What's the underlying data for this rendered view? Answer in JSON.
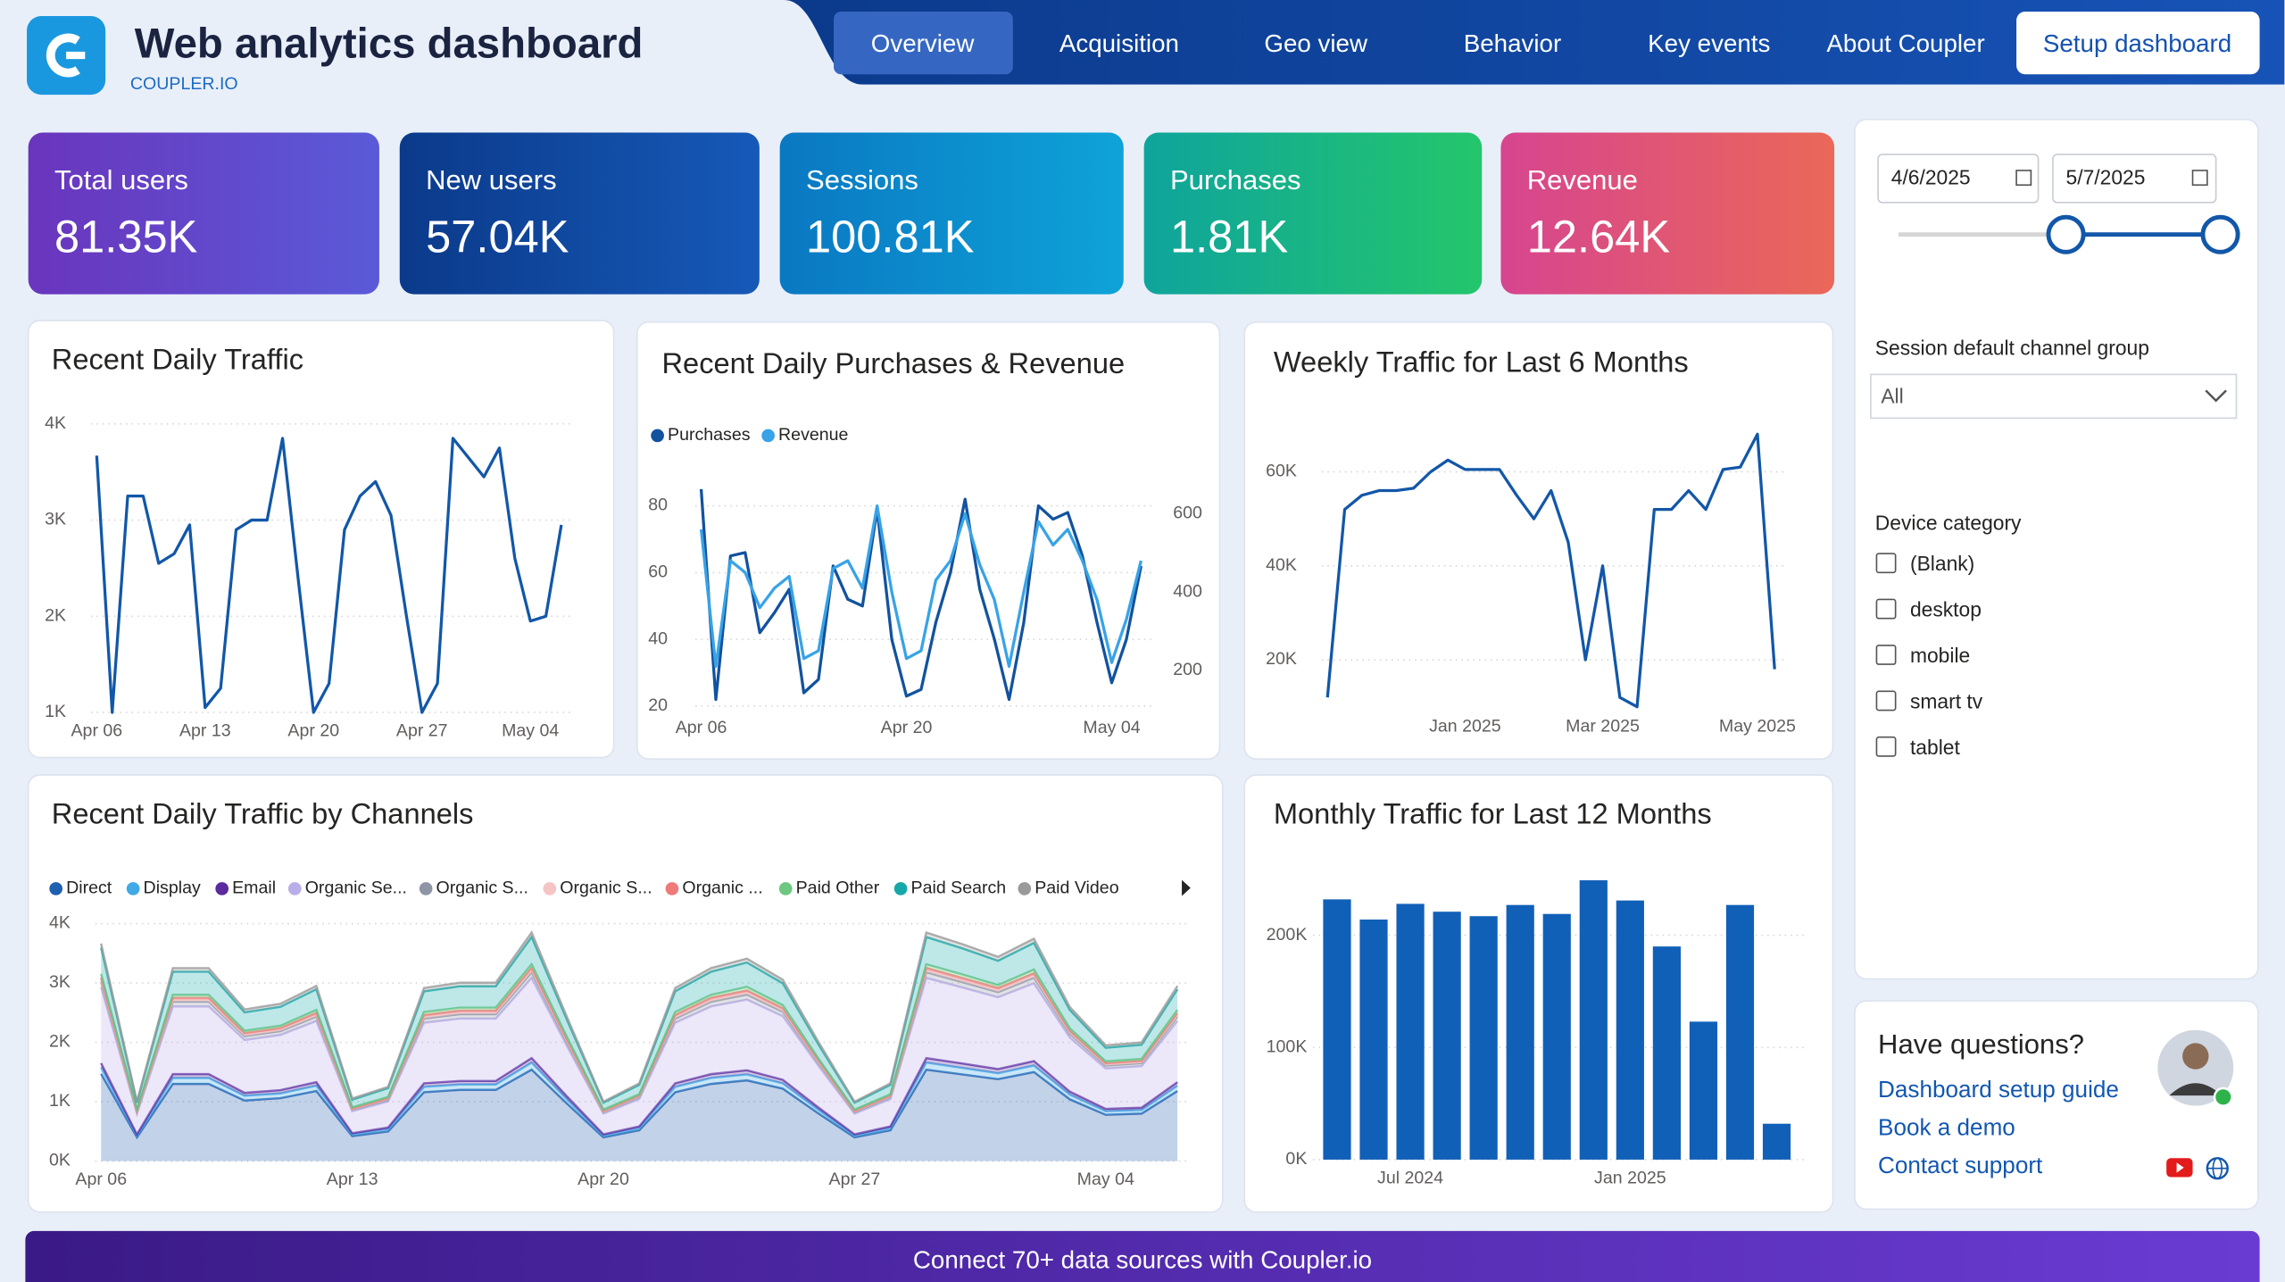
{
  "header": {
    "title": "Web analytics dashboard",
    "brand": "COUPLER.IO"
  },
  "nav": {
    "items": [
      "Overview",
      "Acquisition",
      "Geo view",
      "Behavior",
      "Key events",
      "About Coupler"
    ],
    "button": "Setup dashboard"
  },
  "kpis": [
    {
      "label": "Total users",
      "value": "81.35K"
    },
    {
      "label": "New users",
      "value": "57.04K"
    },
    {
      "label": "Sessions",
      "value": "100.81K"
    },
    {
      "label": "Purchases",
      "value": "1.81K"
    },
    {
      "label": "Revenue",
      "value": "12.64K"
    }
  ],
  "chart_data": [
    {
      "type": "line",
      "title": "Recent Daily Traffic",
      "color": "#1257a8",
      "grid": true,
      "categories": [
        "Apr 06",
        null,
        null,
        null,
        null,
        null,
        null,
        "Apr 13",
        null,
        null,
        null,
        null,
        null,
        null,
        "Apr 20",
        null,
        null,
        null,
        null,
        null,
        null,
        "Apr 27",
        null,
        null,
        null,
        null,
        null,
        null,
        "May 04",
        null,
        null
      ],
      "values": [
        3670,
        1000,
        3250,
        3250,
        2550,
        2650,
        2950,
        1050,
        1250,
        2900,
        3000,
        3000,
        3850,
        2400,
        1000,
        1300,
        2900,
        3250,
        3400,
        3050,
        2000,
        1000,
        1300,
        3850,
        3650,
        3450,
        3750,
        2600,
        1950,
        2000,
        2950
      ],
      "ylim": [
        1000,
        4000
      ],
      "yticks": [
        {
          "value": 1000,
          "label": "1K"
        },
        {
          "value": 2000,
          "label": "2K"
        },
        {
          "value": 3000,
          "label": "3K"
        },
        {
          "value": 4000,
          "label": "4K"
        }
      ]
    },
    {
      "type": "line",
      "title": "Recent Daily Purchases & Revenue",
      "grid": true,
      "categories": [
        "Apr 06",
        null,
        null,
        null,
        null,
        null,
        null,
        null,
        null,
        null,
        null,
        null,
        null,
        null,
        "Apr 20",
        null,
        null,
        null,
        null,
        null,
        null,
        null,
        null,
        null,
        null,
        null,
        null,
        null,
        "May 04",
        null,
        null
      ],
      "series": [
        {
          "name": "Purchases",
          "color": "#12529e",
          "values": [
            85,
            22,
            65,
            66,
            42,
            48,
            55,
            24,
            28,
            62,
            52,
            50,
            79,
            40,
            23,
            25,
            45,
            60,
            82,
            55,
            40,
            22,
            45,
            80,
            76,
            78,
            65,
            45,
            27,
            40,
            62
          ]
        },
        {
          "name": "Revenue",
          "color": "#38a3e6",
          "axis": "y2",
          "values": [
            560,
            210,
            480,
            450,
            360,
            410,
            440,
            230,
            250,
            460,
            480,
            410,
            620,
            400,
            230,
            250,
            430,
            480,
            600,
            470,
            380,
            210,
            400,
            580,
            520,
            560,
            480,
            380,
            220,
            330,
            480
          ]
        }
      ],
      "ylim": [
        19,
        91
      ],
      "yticks": [
        20,
        40,
        60,
        80
      ],
      "y2lim": [
        100,
        714
      ],
      "y2ticks": [
        200,
        400,
        600
      ]
    },
    {
      "type": "line",
      "title": "Weekly Traffic for Last 6 Months",
      "color": "#1257a8",
      "grid": true,
      "categories": [
        null,
        null,
        null,
        null,
        null,
        null,
        null,
        null,
        "Jan 2025",
        null,
        null,
        null,
        null,
        null,
        null,
        null,
        "Mar 2025",
        null,
        null,
        null,
        null,
        null,
        null,
        null,
        null,
        "May 2025",
        null
      ],
      "values": [
        12000,
        52000,
        55000,
        56000,
        56000,
        56500,
        60000,
        62500,
        60500,
        60500,
        60500,
        55000,
        50000,
        56000,
        45000,
        20000,
        40000,
        12000,
        10000,
        52000,
        52000,
        56000,
        52000,
        60500,
        61000,
        68000,
        18000
      ],
      "ylim": [
        8500,
        70500
      ],
      "yticks": [
        {
          "value": 20000,
          "label": "20K"
        },
        {
          "value": 40000,
          "label": "40K"
        },
        {
          "value": 60000,
          "label": "60K"
        }
      ]
    },
    {
      "type": "area",
      "title": "Recent Daily Traffic by Channels",
      "grid": true,
      "categories": [
        "Apr 06",
        null,
        null,
        null,
        null,
        null,
        null,
        "Apr 13",
        null,
        null,
        null,
        null,
        null,
        null,
        "Apr 20",
        null,
        null,
        null,
        null,
        null,
        null,
        "Apr 27",
        null,
        null,
        null,
        null,
        null,
        null,
        "May 04",
        null,
        null
      ],
      "series": [
        {
          "name": "Direct",
          "color": "#1f5fb0",
          "values": [
            1470,
            400,
            1300,
            1300,
            1020,
            1060,
            1180,
            420,
            500,
            1160,
            1200,
            1200,
            1540,
            960,
            400,
            520,
            1160,
            1300,
            1360,
            1220,
            800,
            400,
            520,
            1540,
            1460,
            1380,
            1500,
            1040,
            780,
            800,
            1180
          ]
        },
        {
          "name": "Display",
          "color": "#41a9e6",
          "values": [
            110,
            30,
            100,
            100,
            80,
            80,
            90,
            30,
            40,
            90,
            90,
            90,
            120,
            70,
            30,
            40,
            90,
            100,
            100,
            90,
            60,
            30,
            40,
            120,
            110,
            100,
            110,
            80,
            60,
            60,
            90
          ]
        },
        {
          "name": "Email",
          "color": "#5b2a9e",
          "values": [
            70,
            20,
            65,
            65,
            50,
            55,
            60,
            20,
            25,
            60,
            60,
            60,
            75,
            50,
            20,
            25,
            60,
            65,
            70,
            60,
            40,
            20,
            25,
            75,
            75,
            70,
            75,
            50,
            40,
            40,
            60
          ]
        },
        {
          "name": "Organic Se...",
          "color": "#b9aee8",
          "values": [
            1280,
            350,
            1140,
            1140,
            890,
            930,
            1030,
            370,
            440,
            1020,
            1050,
            1050,
            1350,
            840,
            350,
            460,
            1020,
            1140,
            1190,
            1070,
            700,
            350,
            460,
            1350,
            1280,
            1210,
            1310,
            910,
            680,
            700,
            1030
          ]
        },
        {
          "name": "Organic S...",
          "color": "#8e96a6",
          "values": [
            90,
            25,
            80,
            80,
            65,
            65,
            75,
            25,
            30,
            70,
            75,
            75,
            95,
            60,
            25,
            35,
            70,
            80,
            85,
            75,
            50,
            25,
            35,
            95,
            90,
            85,
            95,
            65,
            50,
            50,
            75
          ]
        },
        {
          "name": "Organic S...",
          "color": "#f5c4c4",
          "values": [
            40,
            10,
            30,
            30,
            25,
            25,
            30,
            10,
            15,
            30,
            30,
            30,
            40,
            25,
            10,
            15,
            30,
            30,
            35,
            30,
            20,
            10,
            15,
            40,
            35,
            35,
            40,
            25,
            20,
            20,
            30
          ]
        },
        {
          "name": "Organic ...",
          "color": "#f07a7a",
          "values": [
            35,
            10,
            35,
            35,
            25,
            25,
            30,
            10,
            10,
            30,
            30,
            30,
            35,
            25,
            10,
            10,
            30,
            35,
            35,
            30,
            20,
            10,
            10,
            35,
            35,
            35,
            35,
            25,
            20,
            20,
            30
          ]
        },
        {
          "name": "Paid Other",
          "color": "#6cc77f",
          "values": [
            60,
            20,
            50,
            50,
            40,
            40,
            50,
            20,
            20,
            50,
            50,
            50,
            60,
            40,
            20,
            20,
            50,
            50,
            60,
            50,
            30,
            20,
            20,
            60,
            60,
            50,
            60,
            40,
            30,
            30,
            50
          ]
        },
        {
          "name": "Paid Search",
          "color": "#16a8a8",
          "values": [
            440,
            120,
            390,
            390,
            310,
            320,
            350,
            130,
            150,
            350,
            360,
            360,
            460,
            290,
            120,
            160,
            350,
            390,
            410,
            370,
            240,
            120,
            160,
            460,
            440,
            410,
            450,
            310,
            230,
            240,
            350
          ]
        },
        {
          "name": "Paid Video",
          "color": "#9a9a9a",
          "values": [
            70,
            15,
            60,
            60,
            50,
            50,
            55,
            20,
            20,
            55,
            60,
            60,
            75,
            45,
            15,
            25,
            55,
            60,
            65,
            60,
            40,
            15,
            25,
            75,
            70,
            65,
            70,
            50,
            40,
            40,
            55
          ]
        }
      ],
      "ylim": [
        0,
        4000
      ],
      "yticks": [
        {
          "value": 0,
          "label": "0K"
        },
        {
          "value": 1000,
          "label": "1K"
        },
        {
          "value": 2000,
          "label": "2K"
        },
        {
          "value": 3000,
          "label": "3K"
        },
        {
          "value": 4000,
          "label": "4K"
        }
      ]
    },
    {
      "type": "bar",
      "title": "Monthly Traffic for Last 12 Months",
      "color": "#1160b8",
      "grid": true,
      "categories": [
        null,
        null,
        "Jul 2024",
        null,
        null,
        null,
        null,
        null,
        "Jan 2025",
        null,
        null,
        null,
        null
      ],
      "values": [
        232000,
        214000,
        228000,
        221000,
        217000,
        227000,
        219000,
        249000,
        231000,
        190000,
        123000,
        227000,
        32000
      ],
      "ylim": [
        0,
        274000
      ],
      "yticks": [
        {
          "value": 0,
          "label": "0K"
        },
        {
          "value": 100000,
          "label": "100K"
        },
        {
          "value": 200000,
          "label": "200K"
        }
      ]
    }
  ],
  "filters": {
    "date_from": "4/6/2025",
    "date_to": "5/7/2025",
    "channel_group": {
      "label": "Session default channel group",
      "value": "All"
    },
    "device_category": {
      "label": "Device category",
      "options": [
        "(Blank)",
        "desktop",
        "mobile",
        "smart tv",
        "tablet"
      ]
    }
  },
  "help": {
    "title": "Have questions?",
    "links": [
      "Dashboard setup guide",
      "Book a demo",
      "Contact support"
    ]
  },
  "footer": "Connect 70+ data sources with Coupler.io"
}
